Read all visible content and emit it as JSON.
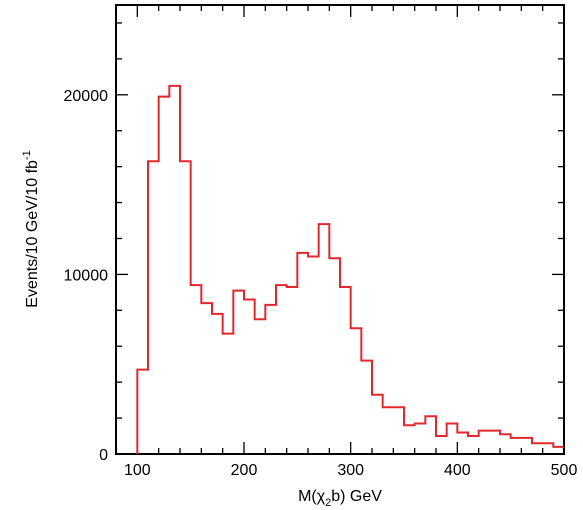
{
  "chart_data": {
    "type": "line",
    "style": "step histogram",
    "line_color": "#e0282e",
    "xlim": [
      80,
      500
    ],
    "ylim": [
      0,
      25000
    ],
    "x_ticks": [
      100,
      200,
      300,
      400,
      500
    ],
    "y_ticks": [
      0,
      10000,
      20000
    ],
    "xlabel": "M(χ₂b)  GeV",
    "xlabel_parts": {
      "prefix": "M(χ",
      "subscript": "2",
      "suffix": "b)  GeV"
    },
    "ylabel": "Events/10 GeV/10 fb⁻¹",
    "ylabel_parts": {
      "main": "Events/10 GeV/10 fb",
      "superscript": "-1"
    },
    "bin_width": 10,
    "bin_edges_start": 100,
    "values": [
      4700,
      16300,
      19900,
      20500,
      16300,
      9400,
      8400,
      7800,
      6700,
      9100,
      8600,
      7500,
      8300,
      9400,
      9300,
      11200,
      11000,
      12800,
      10900,
      9300,
      7000,
      5200,
      3300,
      2600,
      2600,
      1600,
      1700,
      2100,
      1000,
      1700,
      1200,
      1000,
      1300,
      1300,
      1100,
      900,
      900,
      600,
      600,
      400
    ]
  }
}
